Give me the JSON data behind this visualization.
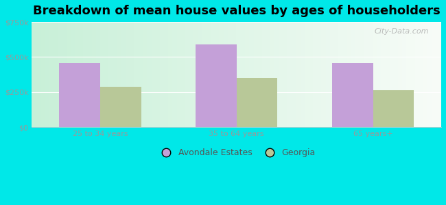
{
  "title": "Breakdown of mean house values by ages of householders",
  "categories": [
    "25 to 34 years",
    "35 to 64 years",
    "65 years+"
  ],
  "avondale_values": [
    460000,
    590000,
    460000
  ],
  "georgia_values": [
    290000,
    350000,
    265000
  ],
  "avondale_color": "#c4a0d8",
  "georgia_color": "#b8c898",
  "ylim": [
    0,
    750000
  ],
  "yticks": [
    0,
    250000,
    500000,
    750000
  ],
  "ytick_labels": [
    "$0",
    "$250k",
    "$500k",
    "$750k"
  ],
  "plot_bg_left": "#c8f0d8",
  "plot_bg_right": "#f0f8f4",
  "outer_background": "#00e8e8",
  "legend_labels": [
    "Avondale Estates",
    "Georgia"
  ],
  "bar_width": 0.3,
  "title_fontsize": 13,
  "legend_fontsize": 9,
  "tick_fontsize": 8,
  "watermark": "City-Data.com"
}
